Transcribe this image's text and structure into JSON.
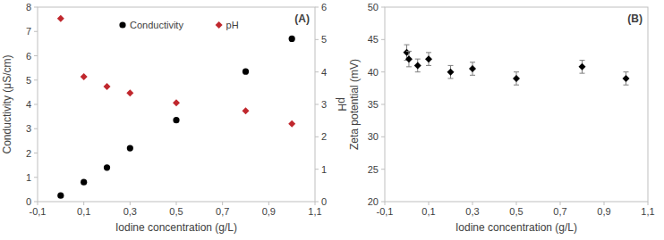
{
  "chart_data": [
    {
      "type": "scatter",
      "annotation": "(A)",
      "xlabel": "Iodine concentration (g/L)",
      "ylabel": "Conductivity (μS/cm)",
      "y2label": "pH",
      "legend": "top",
      "x": [
        0,
        0.1,
        0.2,
        0.3,
        0.5,
        0.8,
        1.0
      ],
      "xlim": [
        -0.1,
        1.1
      ],
      "xticks": [
        {
          "value": -0.1,
          "label": "-0,1"
        },
        {
          "value": 0.1,
          "label": "0,1"
        },
        {
          "value": 0.3,
          "label": "0,3"
        },
        {
          "value": 0.5,
          "label": "0,5"
        },
        {
          "value": 0.7,
          "label": "0,7"
        },
        {
          "value": 0.9,
          "label": "0,9"
        },
        {
          "value": 1.1,
          "label": "1,1"
        }
      ],
      "ylim": [
        0,
        8
      ],
      "yticks": [
        0,
        1,
        2,
        3,
        4,
        5,
        6,
        7,
        8
      ],
      "y2lim": [
        0,
        6
      ],
      "y2ticks": [
        0,
        1,
        2,
        3,
        4,
        5,
        6
      ],
      "series": [
        {
          "name": "Conductivity",
          "color": "#000000",
          "marker": "circle",
          "values": [
            0.25,
            0.8,
            1.4,
            2.2,
            3.35,
            5.35,
            6.7
          ]
        },
        {
          "name": "pH",
          "color": "#c0272d",
          "marker": "diamond",
          "axis": "y2",
          "values": [
            5.65,
            3.85,
            3.55,
            3.35,
            3.05,
            2.8,
            2.4
          ]
        }
      ]
    },
    {
      "type": "scatter",
      "annotation": "(B)",
      "xlabel": "Iodine concentration (g/L)",
      "ylabel": "Zeta potential (mV)",
      "x": [
        0,
        0.01,
        0.05,
        0.1,
        0.2,
        0.3,
        0.5,
        0.8,
        1.0
      ],
      "xlim": [
        -0.1,
        1.1
      ],
      "xticks": [
        {
          "value": -0.1,
          "label": "-0,1"
        },
        {
          "value": 0.1,
          "label": "0,1"
        },
        {
          "value": 0.3,
          "label": "0,3"
        },
        {
          "value": 0.5,
          "label": "0,5"
        },
        {
          "value": 0.7,
          "label": "0,7"
        },
        {
          "value": 0.9,
          "label": "0,9"
        },
        {
          "value": 1.1,
          "label": "1,1"
        }
      ],
      "ylim": [
        20,
        50
      ],
      "yticks": [
        20,
        25,
        30,
        35,
        40,
        45,
        50
      ],
      "series": [
        {
          "color": "#000000",
          "marker": "diamond",
          "values": [
            43,
            42,
            41,
            42,
            40,
            40.5,
            39,
            40.8,
            39
          ],
          "errors": [
            1.2,
            1.2,
            1,
            1,
            1,
            1,
            1,
            1,
            1
          ]
        }
      ]
    }
  ]
}
